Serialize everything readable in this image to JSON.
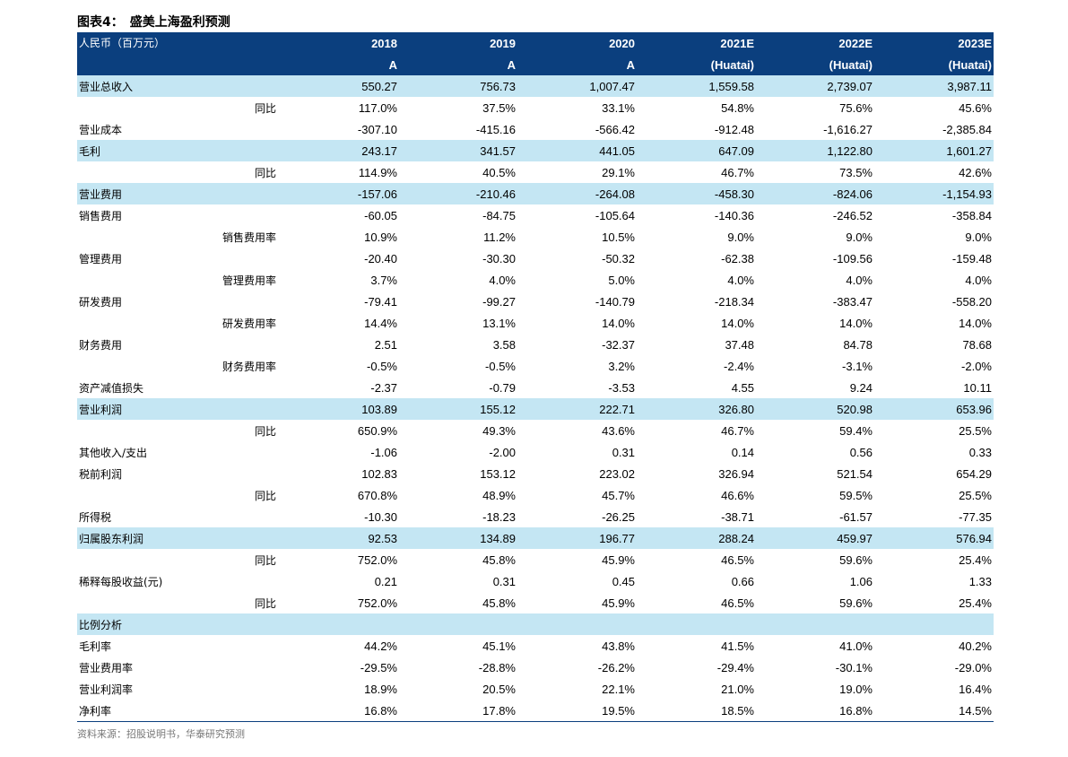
{
  "title": "图表4：　盛美上海盈利预测",
  "header": {
    "label": "人民币（百万元）",
    "years": [
      "2018",
      "2019",
      "2020",
      "2021E",
      "2022E",
      "2023E"
    ],
    "types": [
      "A",
      "A",
      "A",
      "(Huatai)",
      "(Huatai)",
      "(Huatai)"
    ]
  },
  "rows": [
    {
      "label": "营业总收入",
      "sub": "",
      "hl": true,
      "values": [
        "550.27",
        "756.73",
        "1,007.47",
        "1,559.58",
        "2,739.07",
        "3,987.11"
      ]
    },
    {
      "label": "",
      "sub": "同比",
      "hl": false,
      "values": [
        "117.0%",
        "37.5%",
        "33.1%",
        "54.8%",
        "75.6%",
        "45.6%"
      ]
    },
    {
      "label": "营业成本",
      "sub": "",
      "hl": false,
      "values": [
        "-307.10",
        "-415.16",
        "-566.42",
        "-912.48",
        "-1,616.27",
        "-2,385.84"
      ]
    },
    {
      "label": "毛利",
      "sub": "",
      "hl": true,
      "values": [
        "243.17",
        "341.57",
        "441.05",
        "647.09",
        "1,122.80",
        "1,601.27"
      ]
    },
    {
      "label": "",
      "sub": "同比",
      "hl": false,
      "values": [
        "114.9%",
        "40.5%",
        "29.1%",
        "46.7%",
        "73.5%",
        "42.6%"
      ]
    },
    {
      "label": "营业费用",
      "sub": "",
      "hl": true,
      "values": [
        "-157.06",
        "-210.46",
        "-264.08",
        "-458.30",
        "-824.06",
        "-1,154.93"
      ]
    },
    {
      "label": "销售费用",
      "sub": "",
      "hl": false,
      "values": [
        "-60.05",
        "-84.75",
        "-105.64",
        "-140.36",
        "-246.52",
        "-358.84"
      ]
    },
    {
      "label": "",
      "sub": "销售费用率",
      "hl": false,
      "values": [
        "10.9%",
        "11.2%",
        "10.5%",
        "9.0%",
        "9.0%",
        "9.0%"
      ]
    },
    {
      "label": "管理费用",
      "sub": "",
      "hl": false,
      "values": [
        "-20.40",
        "-30.30",
        "-50.32",
        "-62.38",
        "-109.56",
        "-159.48"
      ]
    },
    {
      "label": "",
      "sub": "管理费用率",
      "hl": false,
      "values": [
        "3.7%",
        "4.0%",
        "5.0%",
        "4.0%",
        "4.0%",
        "4.0%"
      ]
    },
    {
      "label": "研发费用",
      "sub": "",
      "hl": false,
      "values": [
        "-79.41",
        "-99.27",
        "-140.79",
        "-218.34",
        "-383.47",
        "-558.20"
      ]
    },
    {
      "label": "",
      "sub": "研发费用率",
      "hl": false,
      "values": [
        "14.4%",
        "13.1%",
        "14.0%",
        "14.0%",
        "14.0%",
        "14.0%"
      ]
    },
    {
      "label": "财务费用",
      "sub": "",
      "hl": false,
      "values": [
        "2.51",
        "3.58",
        "-32.37",
        "37.48",
        "84.78",
        "78.68"
      ]
    },
    {
      "label": "",
      "sub": "财务费用率",
      "hl": false,
      "values": [
        "-0.5%",
        "-0.5%",
        "3.2%",
        "-2.4%",
        "-3.1%",
        "-2.0%"
      ]
    },
    {
      "label": "资产减值损失",
      "sub": "",
      "hl": false,
      "values": [
        "-2.37",
        "-0.79",
        "-3.53",
        "4.55",
        "9.24",
        "10.11"
      ]
    },
    {
      "label": "营业利润",
      "sub": "",
      "hl": true,
      "values": [
        "103.89",
        "155.12",
        "222.71",
        "326.80",
        "520.98",
        "653.96"
      ]
    },
    {
      "label": "",
      "sub": "同比",
      "hl": false,
      "values": [
        "650.9%",
        "49.3%",
        "43.6%",
        "46.7%",
        "59.4%",
        "25.5%"
      ]
    },
    {
      "label": "其他收入/支出",
      "sub": "",
      "hl": false,
      "values": [
        "-1.06",
        "-2.00",
        "0.31",
        "0.14",
        "0.56",
        "0.33"
      ]
    },
    {
      "label": "税前利润",
      "sub": "",
      "hl": false,
      "values": [
        "102.83",
        "153.12",
        "223.02",
        "326.94",
        "521.54",
        "654.29"
      ]
    },
    {
      "label": "",
      "sub": "同比",
      "hl": false,
      "values": [
        "670.8%",
        "48.9%",
        "45.7%",
        "46.6%",
        "59.5%",
        "25.5%"
      ]
    },
    {
      "label": "所得税",
      "sub": "",
      "hl": false,
      "values": [
        "-10.30",
        "-18.23",
        "-26.25",
        "-38.71",
        "-61.57",
        "-77.35"
      ]
    },
    {
      "label": "归属股东利润",
      "sub": "",
      "hl": true,
      "values": [
        "92.53",
        "134.89",
        "196.77",
        "288.24",
        "459.97",
        "576.94"
      ]
    },
    {
      "label": "",
      "sub": "同比",
      "hl": false,
      "values": [
        "752.0%",
        "45.8%",
        "45.9%",
        "46.5%",
        "59.6%",
        "25.4%"
      ]
    },
    {
      "label": "稀释每股收益(元)",
      "sub": "",
      "hl": false,
      "values": [
        "0.21",
        "0.31",
        "0.45",
        "0.66",
        "1.06",
        "1.33"
      ]
    },
    {
      "label": "",
      "sub": "同比",
      "hl": false,
      "values": [
        "752.0%",
        "45.8%",
        "45.9%",
        "46.5%",
        "59.6%",
        "25.4%"
      ]
    },
    {
      "label": "比例分析",
      "sub": "",
      "hl": true,
      "values": [
        "",
        "",
        "",
        "",
        "",
        ""
      ]
    },
    {
      "label": "毛利率",
      "sub": "",
      "hl": false,
      "values": [
        "44.2%",
        "45.1%",
        "43.8%",
        "41.5%",
        "41.0%",
        "40.2%"
      ]
    },
    {
      "label": "营业费用率",
      "sub": "",
      "hl": false,
      "values": [
        "-29.5%",
        "-28.8%",
        "-26.2%",
        "-29.4%",
        "-30.1%",
        "-29.0%"
      ]
    },
    {
      "label": "营业利润率",
      "sub": "",
      "hl": false,
      "values": [
        "18.9%",
        "20.5%",
        "22.1%",
        "21.0%",
        "19.0%",
        "16.4%"
      ]
    },
    {
      "label": "净利率",
      "sub": "",
      "hl": false,
      "values": [
        "16.8%",
        "17.8%",
        "19.5%",
        "18.5%",
        "16.8%",
        "14.5%"
      ]
    }
  ],
  "source": "资料来源：招股说明书，华泰研究预测",
  "colors": {
    "header_bg": "#0b3f7e",
    "highlight_bg": "#c4e6f3"
  }
}
